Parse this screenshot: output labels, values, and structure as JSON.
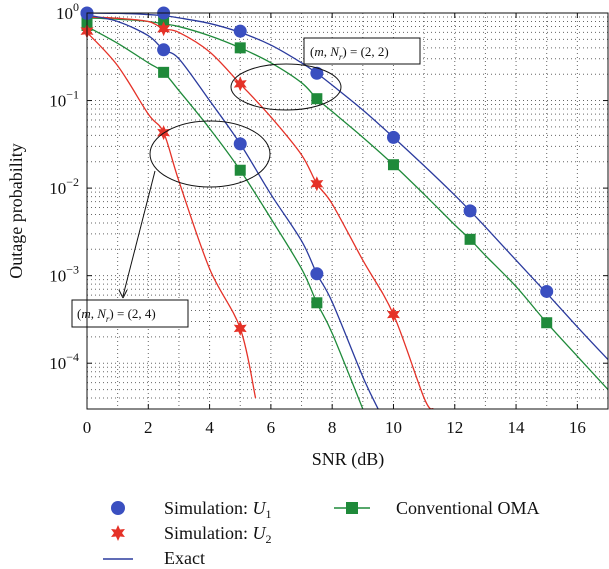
{
  "chart_data": {
    "type": "line",
    "xlabel": "SNR (dB)",
    "ylabel": "Outage probability",
    "x_scale": "linear",
    "y_scale": "log",
    "xlim": [
      0,
      17
    ],
    "ylim": [
      3e-05,
      1
    ],
    "x_ticks": [
      0,
      2,
      4,
      6,
      8,
      10,
      12,
      14,
      16
    ],
    "y_ticks": [
      {
        "value": 1,
        "base": "10",
        "exp": "0"
      },
      {
        "value": 0.1,
        "base": "10",
        "exp": "−1"
      },
      {
        "value": 0.01,
        "base": "10",
        "exp": "−2"
      },
      {
        "value": 0.001,
        "base": "10",
        "exp": "−3"
      },
      {
        "value": 0.0001,
        "base": "10",
        "exp": "−4"
      }
    ],
    "grid": true,
    "series": [
      {
        "group": "(2,2)",
        "kind": "exact",
        "user": "U1",
        "color": "#2b3b9e",
        "x": [
          0,
          1,
          2,
          2.5,
          3,
          4,
          5,
          6,
          7,
          7.5,
          8,
          9,
          10,
          11,
          12,
          12.5,
          13,
          14,
          15,
          16,
          17
        ],
        "y": [
          1,
          0.99,
          0.96,
          0.93,
          0.88,
          0.76,
          0.6,
          0.43,
          0.27,
          0.205,
          0.15,
          0.078,
          0.038,
          0.018,
          0.0083,
          0.0055,
          0.0036,
          0.0015,
          0.00063,
          0.00026,
          0.00011
        ]
      },
      {
        "group": "(2,2)",
        "kind": "oma",
        "color": "#1f8a3a",
        "x": [
          0,
          1,
          2,
          2.5,
          3,
          4,
          5,
          6,
          7,
          7.5,
          8,
          9,
          10,
          11,
          12,
          12.5,
          13,
          14,
          15,
          16,
          17
        ],
        "y": [
          0.88,
          0.85,
          0.8,
          0.75,
          0.7,
          0.55,
          0.4,
          0.27,
          0.16,
          0.105,
          0.075,
          0.038,
          0.0185,
          0.0085,
          0.0038,
          0.0026,
          0.0017,
          0.00075,
          0.00029,
          0.00012,
          5e-05
        ]
      },
      {
        "group": "(2,2)",
        "kind": "exact",
        "user": "U2",
        "color": "#e53228",
        "x": [
          0,
          1,
          2,
          2.5,
          3,
          4,
          5,
          6,
          7,
          7.5,
          8,
          9,
          10,
          11,
          11.3
        ],
        "y": [
          0.9,
          0.87,
          0.8,
          0.66,
          0.6,
          0.36,
          0.155,
          0.065,
          0.024,
          0.0112,
          0.0066,
          0.0015,
          0.00036,
          4e-05,
          3e-05
        ]
      },
      {
        "group": "(2,4)",
        "kind": "exact",
        "user": "U1",
        "color": "#2b3b9e",
        "x": [
          0,
          1,
          2,
          2.5,
          3,
          4,
          5,
          6,
          7,
          7.5,
          8,
          9,
          9.5
        ],
        "y": [
          0.95,
          0.8,
          0.55,
          0.38,
          0.3,
          0.1,
          0.032,
          0.0085,
          0.0025,
          0.00105,
          0.0005,
          7e-05,
          3e-05
        ]
      },
      {
        "group": "(2,4)",
        "kind": "oma",
        "color": "#1f8a3a",
        "x": [
          0,
          1,
          2,
          2.5,
          3,
          4,
          5,
          6,
          7,
          7.5,
          8,
          9
        ],
        "y": [
          0.7,
          0.45,
          0.27,
          0.21,
          0.13,
          0.048,
          0.016,
          0.0045,
          0.0012,
          0.00049,
          0.00022,
          3e-05
        ]
      },
      {
        "group": "(2,4)",
        "kind": "exact",
        "user": "U2",
        "color": "#e53228",
        "x": [
          0,
          1,
          2,
          2.5,
          3,
          4,
          5,
          5.5
        ],
        "y": [
          0.6,
          0.25,
          0.07,
          0.043,
          0.012,
          0.0012,
          0.00025,
          4e-05
        ]
      }
    ],
    "markers": {
      "U1": {
        "shape": "circle",
        "color": "#3a4fc0",
        "points": [
          [
            0,
            1
          ],
          [
            2.5,
            1
          ],
          [
            5,
            0.62
          ],
          [
            7.5,
            0.205
          ],
          [
            10,
            0.038
          ],
          [
            12.5,
            0.0055
          ],
          [
            15,
            0.00066
          ],
          [
            0,
            0.99
          ],
          [
            2.5,
            0.38
          ],
          [
            5,
            0.032
          ],
          [
            7.5,
            0.00105
          ]
        ]
      },
      "U2": {
        "shape": "star",
        "color": "#e53228",
        "points": [
          [
            0,
            0.62
          ],
          [
            2.5,
            0.66
          ],
          [
            5,
            0.155
          ],
          [
            7.5,
            0.0112
          ],
          [
            10,
            0.00036
          ],
          [
            2.5,
            0.043
          ],
          [
            5,
            0.00025
          ]
        ]
      },
      "OMA": {
        "shape": "square",
        "color": "#1f8a3a",
        "points": [
          [
            0,
            0.88
          ],
          [
            2.5,
            0.8
          ],
          [
            5,
            0.4
          ],
          [
            7.5,
            0.105
          ],
          [
            10,
            0.0185
          ],
          [
            12.5,
            0.0026
          ],
          [
            15,
            0.00029
          ],
          [
            0,
            0.72
          ],
          [
            2.5,
            0.21
          ],
          [
            5,
            0.016
          ],
          [
            7.5,
            0.00049
          ]
        ]
      }
    },
    "legend": {
      "placement": "bottom",
      "entries": [
        {
          "key": "u1",
          "label_main": "Simulation: ",
          "label_var": "U",
          "label_sub": "1"
        },
        {
          "key": "u2",
          "label_main": "Simulation: ",
          "label_var": "U",
          "label_sub": "2"
        },
        {
          "key": "exact",
          "label_main": "Exact"
        },
        {
          "key": "oma",
          "label_main": "Conventional OMA"
        }
      ]
    },
    "annotations": [
      {
        "key": "a22",
        "open": "(",
        "m": "m",
        "comma": ", ",
        "n": "N",
        "sub": "r",
        "close": ") = (2, 2)",
        "ellipse_center": [
          7.5,
          0.16
        ]
      },
      {
        "key": "a24",
        "open": "(",
        "m": "m",
        "comma": ", ",
        "n": "N",
        "sub": "r",
        "close": ") = (2, 4)",
        "ellipse_center": [
          4,
          0.035
        ]
      }
    ]
  }
}
